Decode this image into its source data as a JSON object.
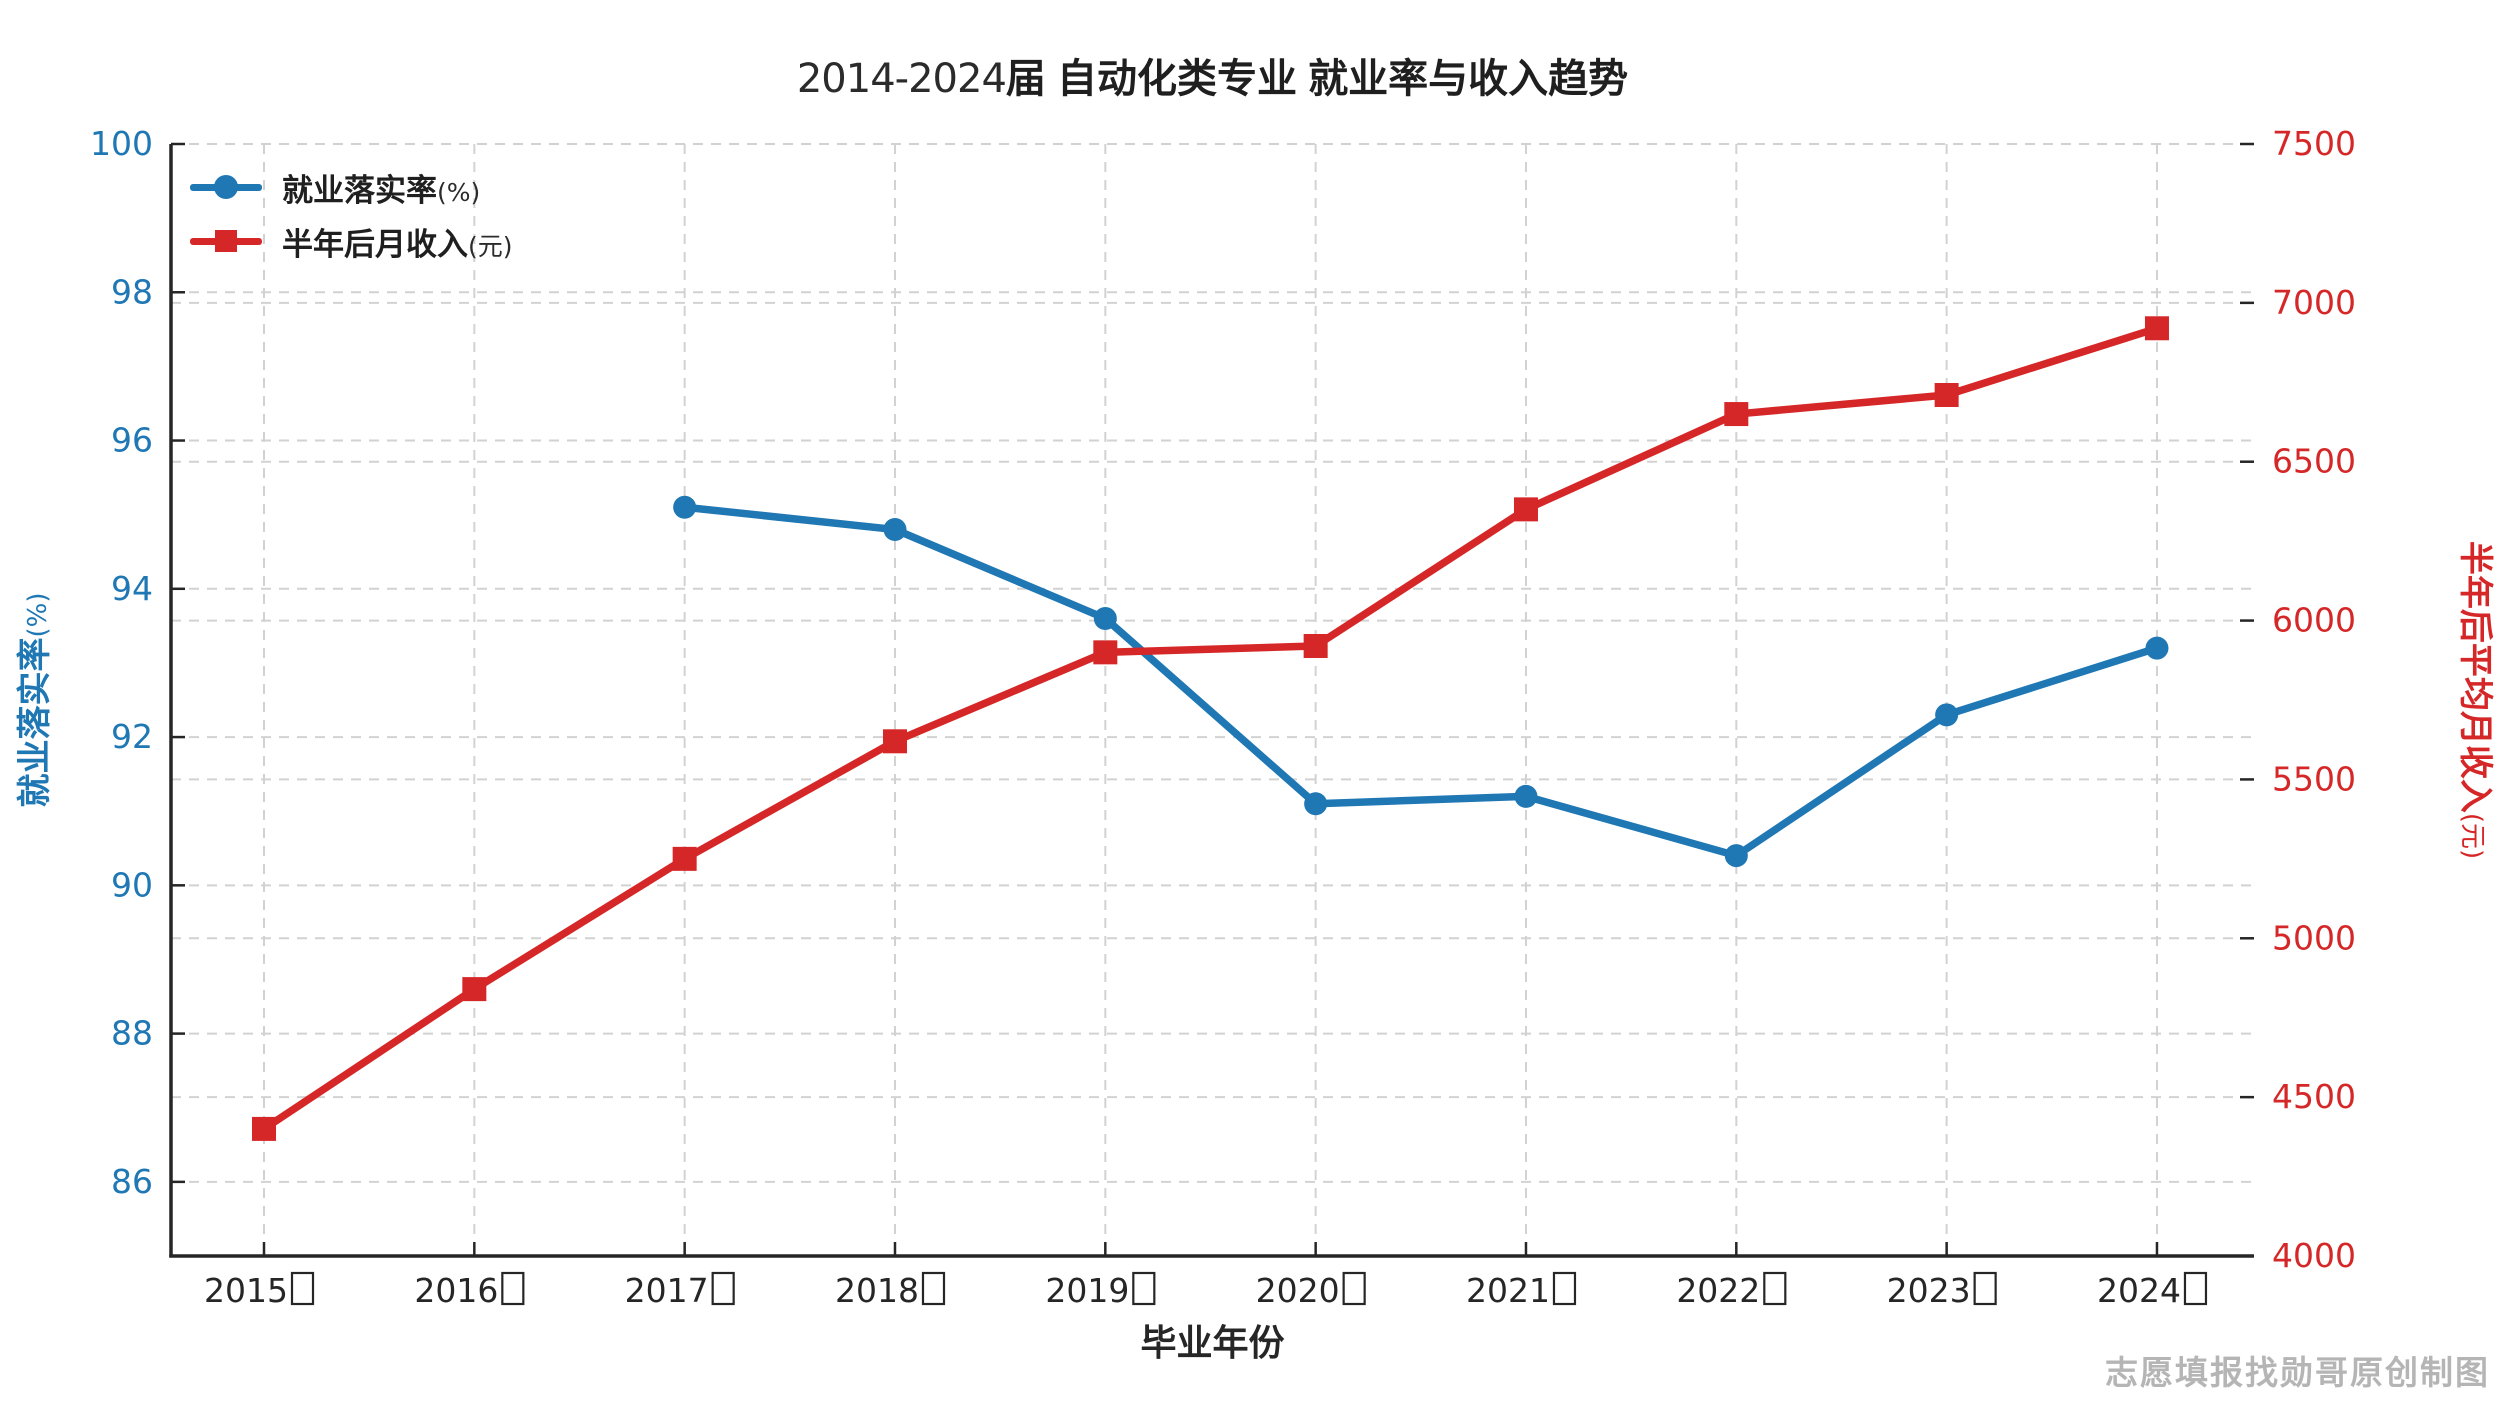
{
  "title": {
    "prefix": "2014-2024",
    "suffix": "届 自动化类专业 就业率与收入趋势",
    "full": "2014-2024届 自动化类专业 就业率与收入趋势"
  },
  "watermark": "志愿填报找勋哥原创制图",
  "legend": [
    {
      "label_cn": "就业落实率",
      "label_unit": "(%)",
      "color": "#1f77b4",
      "marker": "circle"
    },
    {
      "label_cn": "半年后月收入",
      "label_unit": "(元)",
      "color": "#d62728",
      "marker": "square"
    }
  ],
  "chart_data": {
    "type": "line",
    "title": "2014-2024届 自动化类专业 就业率与收入趋势",
    "categories": [
      "2015届",
      "2016届",
      "2017届",
      "2018届",
      "2019届",
      "2020届",
      "2021届",
      "2022届",
      "2023届",
      "2024届"
    ],
    "x_tick_numbers": [
      "2015",
      "2016",
      "2017",
      "2018",
      "2019",
      "2020",
      "2021",
      "2022",
      "2023",
      "2024"
    ],
    "xlabel": "毕业年份",
    "grid": true,
    "grid_style": "dashed",
    "legend_position": "upper left",
    "left_axis": {
      "label_cn": "就业落实率",
      "label_unit": "(%)",
      "label": "就业落实率(%)",
      "color": "#1f77b4",
      "ticks": [
        86,
        88,
        90,
        92,
        94,
        96,
        98,
        100
      ],
      "ylim": [
        85,
        100
      ]
    },
    "right_axis": {
      "label_cn": "半年后平均月收入",
      "label_unit": "(元)",
      "label": "半年后平均月收入(元)",
      "color": "#d62728",
      "ticks": [
        4000,
        4500,
        5000,
        5500,
        6000,
        6500,
        7000,
        7500
      ],
      "ylim": [
        4000,
        7500
      ]
    },
    "series": [
      {
        "name": "就业落实率(%)",
        "axis": "left",
        "color": "#1f77b4",
        "marker": "circle",
        "values": [
          null,
          null,
          95.1,
          94.8,
          93.6,
          91.1,
          91.2,
          90.4,
          92.3,
          93.2
        ]
      },
      {
        "name": "半年后月收入(元)",
        "axis": "right",
        "color": "#d62728",
        "marker": "square",
        "values": [
          4400,
          4840,
          5250,
          5620,
          5900,
          5920,
          6350,
          6650,
          6710,
          6920
        ]
      }
    ]
  }
}
